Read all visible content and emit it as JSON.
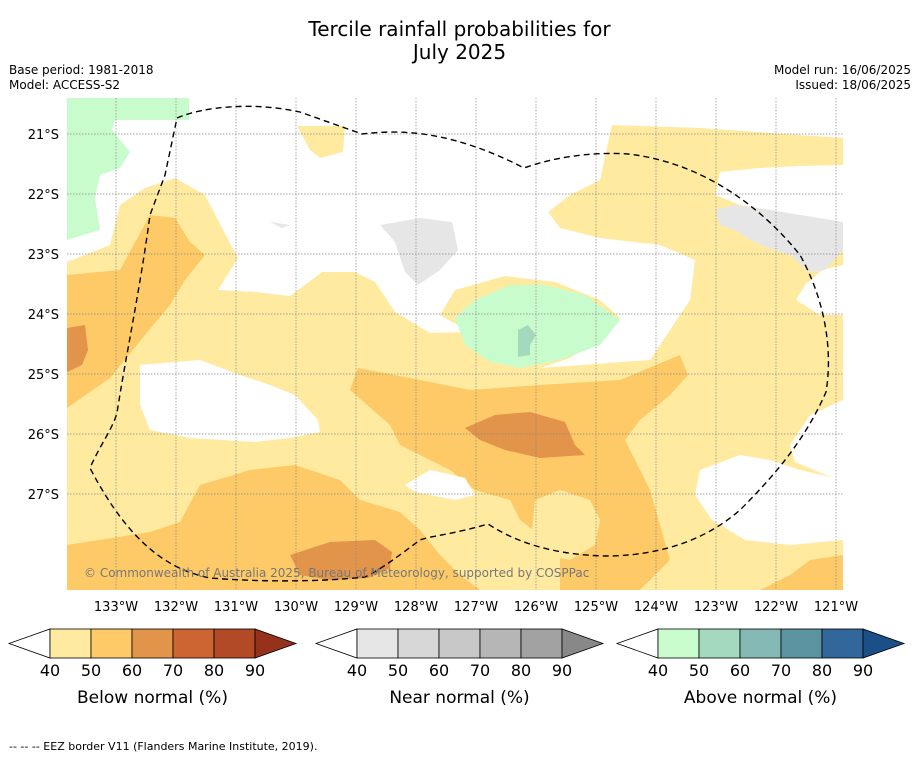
{
  "header": {
    "title_line1": "Tercile rainfall probabilities for",
    "title_line2": "July 2025",
    "base_period": "Base period: 1981-2018",
    "model": "Model: ACCESS-S2",
    "model_run": "Model run: 16/06/2025",
    "issued": "Issued: 18/06/2025"
  },
  "map": {
    "lat_labels": [
      "21°S",
      "22°S",
      "23°S",
      "24°S",
      "25°S",
      "26°S",
      "27°S"
    ],
    "lon_labels": [
      "133°W",
      "132°W",
      "131°W",
      "130°W",
      "129°W",
      "128°W",
      "127°W",
      "126°W",
      "125°W",
      "124°W",
      "123°W",
      "122°W",
      "121°W"
    ],
    "copyright": "© Commonwealth of Australia 2025, Bureau of Meteorology, supported by COSPPac",
    "grid": true,
    "eez_border": "dashed"
  },
  "colorbars": [
    {
      "label": "Below normal (%)",
      "ticks": [
        "40",
        "50",
        "60",
        "70",
        "80",
        "90"
      ],
      "colors": [
        "#ffeaa0",
        "#fdca67",
        "#e2944a",
        "#cd6533",
        "#b24a28",
        "#96321c"
      ]
    },
    {
      "label": "Near normal (%)",
      "ticks": [
        "40",
        "50",
        "60",
        "70",
        "80",
        "90"
      ],
      "colors": [
        "#e6e6e6",
        "#d7d7d7",
        "#c8c8c8",
        "#b6b6b6",
        "#a2a2a2",
        "#888888"
      ]
    },
    {
      "label": "Above normal (%)",
      "ticks": [
        "40",
        "50",
        "60",
        "70",
        "80",
        "90"
      ],
      "colors": [
        "#c8fccc",
        "#a4d9be",
        "#84b8b4",
        "#5b93a1",
        "#31679a",
        "#1b4f87"
      ]
    }
  ],
  "footnote": "-- -- -- EEZ border V11 (Flanders Marine Institute, 2019)."
}
